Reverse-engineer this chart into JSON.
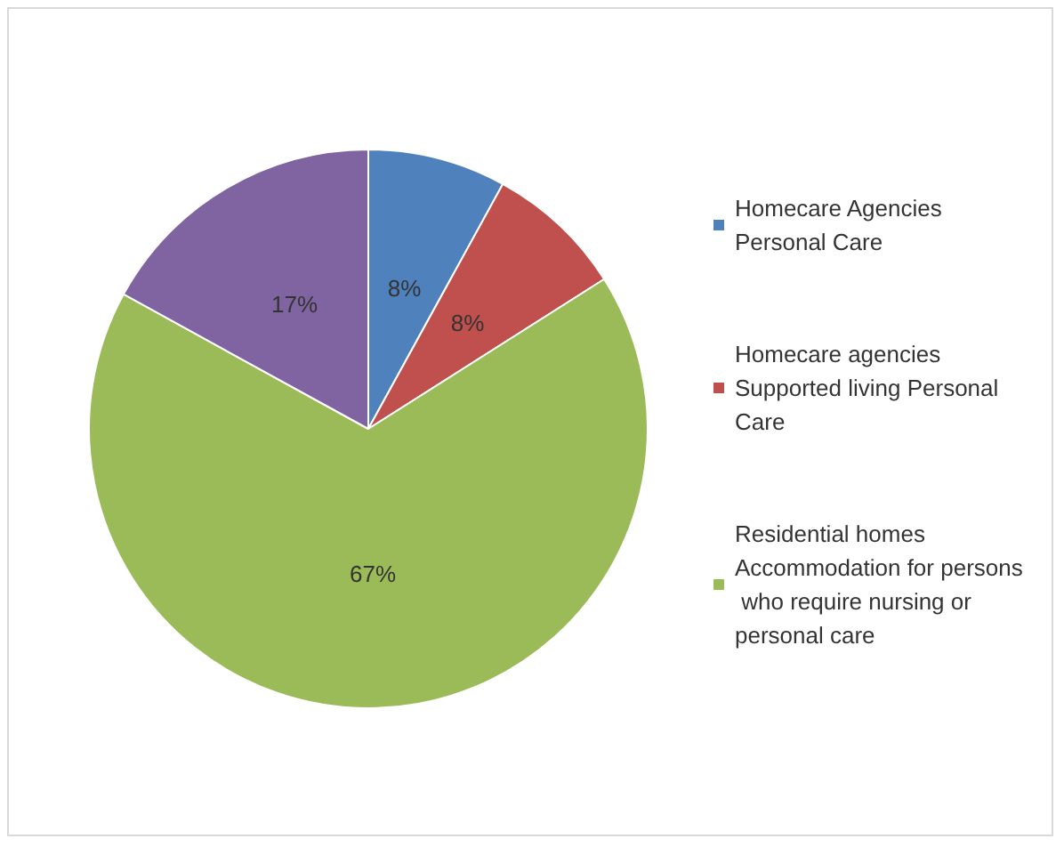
{
  "chart_data": {
    "type": "pie",
    "categories": [
      "Homecare Agencies Personal Care",
      "Homecare agencies Supported living Personal Care",
      "Residential homes Accommodation for persons who require nursing or personal care",
      null
    ],
    "values": [
      8,
      8,
      67,
      17
    ],
    "value_labels": [
      "8%",
      "8%",
      "67%",
      "17%"
    ],
    "colors": [
      "#4f81bd",
      "#c0504d",
      "#9bbb59",
      "#8064a2"
    ],
    "legend": "right"
  }
}
